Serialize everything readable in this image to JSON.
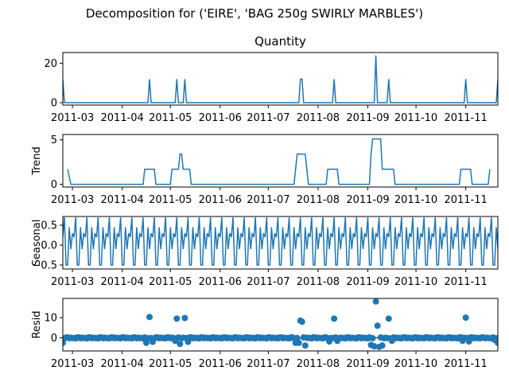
{
  "figure": {
    "suptitle": "Decomposition for ('EIRE', 'BAG 250g SWIRLY MARBLES')",
    "line_color": "#1f77b4"
  },
  "chart_data": [
    {
      "type": "line",
      "name": "observed",
      "title": "Quantity",
      "ylabel": "",
      "x_range": [
        "2011-02-23",
        "2011-11-21"
      ],
      "ylim": [
        -1.2,
        25.5
      ],
      "yticks": [
        0,
        20
      ],
      "xtick_labels": [
        "2011-03",
        "2011-04",
        "2011-05",
        "2011-06",
        "2011-07",
        "2011-08",
        "2011-09",
        "2011-10",
        "2011-11"
      ],
      "baseline": 0,
      "spikes": [
        {
          "x": "2011-02-23",
          "y": 12
        },
        {
          "x": "2011-04-18",
          "y": 12
        },
        {
          "x": "2011-05-05",
          "y": 12
        },
        {
          "x": "2011-05-10",
          "y": 12
        },
        {
          "x": "2011-07-21",
          "y": 12
        },
        {
          "x": "2011-07-22",
          "y": 12
        },
        {
          "x": "2011-08-11",
          "y": 12
        },
        {
          "x": "2011-09-06",
          "y": 24
        },
        {
          "x": "2011-09-14",
          "y": 12
        },
        {
          "x": "2011-11-01",
          "y": 12
        },
        {
          "x": "2011-11-21",
          "y": 12
        }
      ]
    },
    {
      "type": "line",
      "name": "trend",
      "title": "",
      "ylabel": "Trend",
      "x_range": [
        "2011-02-23",
        "2011-11-21"
      ],
      "ylim": [
        -0.3,
        5.6
      ],
      "yticks": [
        0,
        5
      ],
      "xtick_labels": [
        "2011-03",
        "2011-04",
        "2011-05",
        "2011-06",
        "2011-07",
        "2011-08",
        "2011-09",
        "2011-10",
        "2011-11"
      ],
      "points": [
        {
          "x": "2011-02-26",
          "y": 1.7
        },
        {
          "x": "2011-02-28",
          "y": 0
        },
        {
          "x": "2011-04-14",
          "y": 0
        },
        {
          "x": "2011-04-15",
          "y": 1.7
        },
        {
          "x": "2011-04-21",
          "y": 1.7
        },
        {
          "x": "2011-04-22",
          "y": 0
        },
        {
          "x": "2011-05-01",
          "y": 0
        },
        {
          "x": "2011-05-02",
          "y": 1.7
        },
        {
          "x": "2011-05-06",
          "y": 1.7
        },
        {
          "x": "2011-05-07",
          "y": 3.4
        },
        {
          "x": "2011-05-08",
          "y": 3.4
        },
        {
          "x": "2011-05-09",
          "y": 1.7
        },
        {
          "x": "2011-05-13",
          "y": 1.7
        },
        {
          "x": "2011-05-14",
          "y": 0
        },
        {
          "x": "2011-07-17",
          "y": 0
        },
        {
          "x": "2011-07-19",
          "y": 3.4
        },
        {
          "x": "2011-07-24",
          "y": 3.4
        },
        {
          "x": "2011-07-26",
          "y": 0
        },
        {
          "x": "2011-08-06",
          "y": 0
        },
        {
          "x": "2011-08-07",
          "y": 1.7
        },
        {
          "x": "2011-08-13",
          "y": 1.7
        },
        {
          "x": "2011-08-14",
          "y": 0
        },
        {
          "x": "2011-09-02",
          "y": 0
        },
        {
          "x": "2011-09-03",
          "y": 3.4
        },
        {
          "x": "2011-09-04",
          "y": 5.1
        },
        {
          "x": "2011-09-09",
          "y": 5.1
        },
        {
          "x": "2011-09-10",
          "y": 1.7
        },
        {
          "x": "2011-09-17",
          "y": 1.7
        },
        {
          "x": "2011-09-18",
          "y": 0
        },
        {
          "x": "2011-10-28",
          "y": 0
        },
        {
          "x": "2011-10-29",
          "y": 1.7
        },
        {
          "x": "2011-11-04",
          "y": 1.7
        },
        {
          "x": "2011-11-05",
          "y": 0
        },
        {
          "x": "2011-11-15",
          "y": 0
        },
        {
          "x": "2011-11-16",
          "y": 1.7
        }
      ]
    },
    {
      "type": "line",
      "name": "seasonal",
      "title": "",
      "ylabel": "Seasonal",
      "x_range": [
        "2011-02-23",
        "2011-11-21"
      ],
      "ylim": [
        -0.6,
        0.72
      ],
      "yticks": [
        0.5,
        0.0,
        -0.5
      ],
      "ytick_labels": [
        "0.5",
        "0.0",
        "−0.5"
      ],
      "xtick_labels": [
        "2011-03",
        "2011-04",
        "2011-05",
        "2011-06",
        "2011-07",
        "2011-08",
        "2011-09",
        "2011-10",
        "2011-11"
      ],
      "period_days": 7,
      "cycle_values": [
        0.2,
        0.7,
        -0.5,
        -0.5,
        0.45,
        -0.1,
        0.3
      ]
    },
    {
      "type": "scatter",
      "name": "resid",
      "title": "",
      "ylabel": "Resid",
      "x_range": [
        "2011-02-23",
        "2011-11-21"
      ],
      "ylim": [
        -6.5,
        19.5
      ],
      "yticks": [
        0,
        10
      ],
      "xtick_labels": [
        "2011-03",
        "2011-04",
        "2011-05",
        "2011-06",
        "2011-07",
        "2011-08",
        "2011-09",
        "2011-10",
        "2011-11"
      ],
      "baseline": 0,
      "highlights": [
        {
          "x": "2011-02-23",
          "y": -2.5
        },
        {
          "x": "2011-04-16",
          "y": -2.5
        },
        {
          "x": "2011-04-18",
          "y": 10.3
        },
        {
          "x": "2011-04-20",
          "y": -2.0
        },
        {
          "x": "2011-05-04",
          "y": -1.5
        },
        {
          "x": "2011-05-05",
          "y": 9.5
        },
        {
          "x": "2011-05-07",
          "y": -3.0
        },
        {
          "x": "2011-05-10",
          "y": 9.8
        },
        {
          "x": "2011-05-12",
          "y": -2.0
        },
        {
          "x": "2011-07-18",
          "y": -2.5
        },
        {
          "x": "2011-07-20",
          "y": -2.5
        },
        {
          "x": "2011-07-21",
          "y": 8.5
        },
        {
          "x": "2011-07-22",
          "y": 8.0
        },
        {
          "x": "2011-07-24",
          "y": -3.8
        },
        {
          "x": "2011-08-08",
          "y": -1.8
        },
        {
          "x": "2011-08-11",
          "y": 9.5
        },
        {
          "x": "2011-08-13",
          "y": -1.5
        },
        {
          "x": "2011-09-03",
          "y": -3.5
        },
        {
          "x": "2011-09-05",
          "y": -4.2
        },
        {
          "x": "2011-09-06",
          "y": 18.0
        },
        {
          "x": "2011-09-07",
          "y": 6.0
        },
        {
          "x": "2011-09-08",
          "y": -4.5
        },
        {
          "x": "2011-09-10",
          "y": -3.8
        },
        {
          "x": "2011-09-14",
          "y": 9.5
        },
        {
          "x": "2011-09-16",
          "y": -1.5
        },
        {
          "x": "2011-10-30",
          "y": -1.5
        },
        {
          "x": "2011-11-01",
          "y": 10.0
        },
        {
          "x": "2011-11-03",
          "y": -1.8
        },
        {
          "x": "2011-11-19",
          "y": -1.0
        },
        {
          "x": "2011-11-21",
          "y": -2.5
        }
      ]
    }
  ]
}
